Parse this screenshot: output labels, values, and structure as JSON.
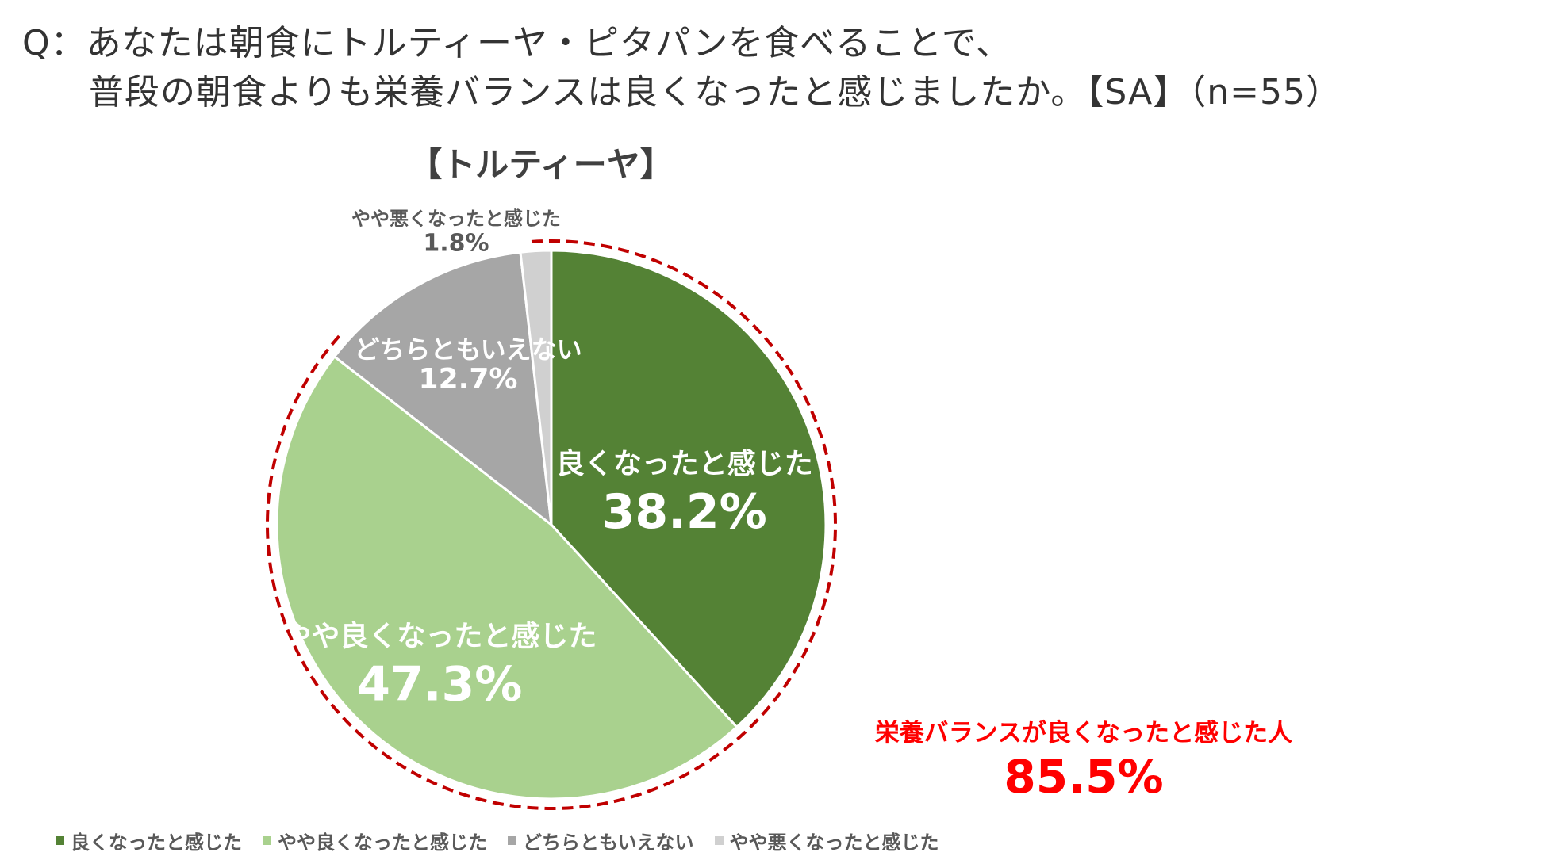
{
  "question": {
    "line1": "Q：あなたは朝食にトルティーヤ・ピタパンを食べることで、",
    "line2": "普段の朝食よりも栄養バランスは良くなったと感じましたか。【SA】（n=55）"
  },
  "chart_data": {
    "type": "pie",
    "title": "【トルティーヤ】",
    "slices": [
      {
        "label": "良くなったと感じた",
        "value": 38.2,
        "display": "38.2%",
        "color": "#548235"
      },
      {
        "label": "やや良くなったと感じた",
        "value": 47.3,
        "display": "47.3%",
        "color": "#a9d18e"
      },
      {
        "label": "どちらともいえない",
        "value": 12.7,
        "display": "12.7%",
        "color": "#a6a6a6"
      },
      {
        "label": "やや悪くなったと感じた",
        "value": 1.8,
        "display": "1.8%",
        "color": "#d0d0d0"
      }
    ],
    "legend_position": "bottom",
    "callout": {
      "label": "栄養バランスが良くなったと感じた人",
      "value": "85.5%",
      "color": "#ff0000",
      "ring_color": "#c00000"
    }
  }
}
